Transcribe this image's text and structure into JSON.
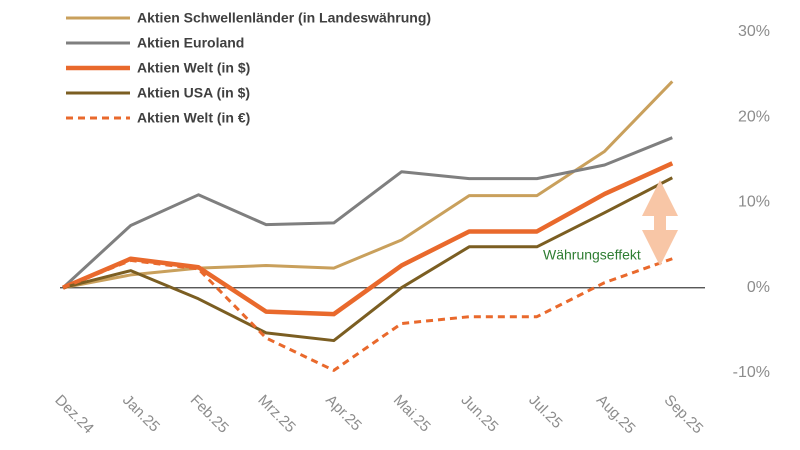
{
  "chart_data": {
    "type": "line",
    "categories": [
      "Dez.24",
      "Jan.25",
      "Feb.25",
      "Mrz.25",
      "Apr.25",
      "Mai.25",
      "Jun.25",
      "Jul.25",
      "Aug.25",
      "Sep.25"
    ],
    "series": [
      {
        "name": "Aktien Schwellenländer (in Landeswährung)",
        "color": "#c9a05c",
        "linestyle": "solid",
        "values": [
          0,
          1.5,
          2.3,
          2.6,
          2.3,
          5.6,
          10.8,
          10.8,
          16,
          24.2
        ]
      },
      {
        "name": "Aktien Euroland",
        "color": "#7f7f7f",
        "linestyle": "solid",
        "values": [
          0,
          7.3,
          10.9,
          7.4,
          7.6,
          13.6,
          12.8,
          12.8,
          14.4,
          17.6
        ]
      },
      {
        "name": "Aktien Welt (in $)",
        "color": "#e9692c",
        "linestyle": "solid",
        "values": [
          0,
          3.4,
          2.4,
          -2.8,
          -3.1,
          2.6,
          6.6,
          6.6,
          11,
          14.6
        ]
      },
      {
        "name": "Aktien USA (in $)",
        "color": "#7b5e22",
        "linestyle": "solid",
        "values": [
          0,
          2,
          -1.3,
          -5.3,
          -6.2,
          0,
          4.8,
          4.8,
          8.8,
          12.9
        ]
      },
      {
        "name": "Aktien Welt (in €)",
        "color": "#e9692c",
        "linestyle": "dashed",
        "values": [
          0,
          3.2,
          2.2,
          -5.9,
          -9.7,
          -4.2,
          -3.4,
          -3.4,
          0.6,
          3.4
        ]
      }
    ],
    "ylim": [
      -12,
      30
    ],
    "yticks": [
      {
        "value": -10,
        "label": "-10%"
      },
      {
        "value": 0,
        "label": "0%"
      },
      {
        "value": 10,
        "label": "10%"
      },
      {
        "value": 20,
        "label": "20%"
      },
      {
        "value": 30,
        "label": "30%"
      }
    ],
    "annotation": "Währungseffekt"
  }
}
